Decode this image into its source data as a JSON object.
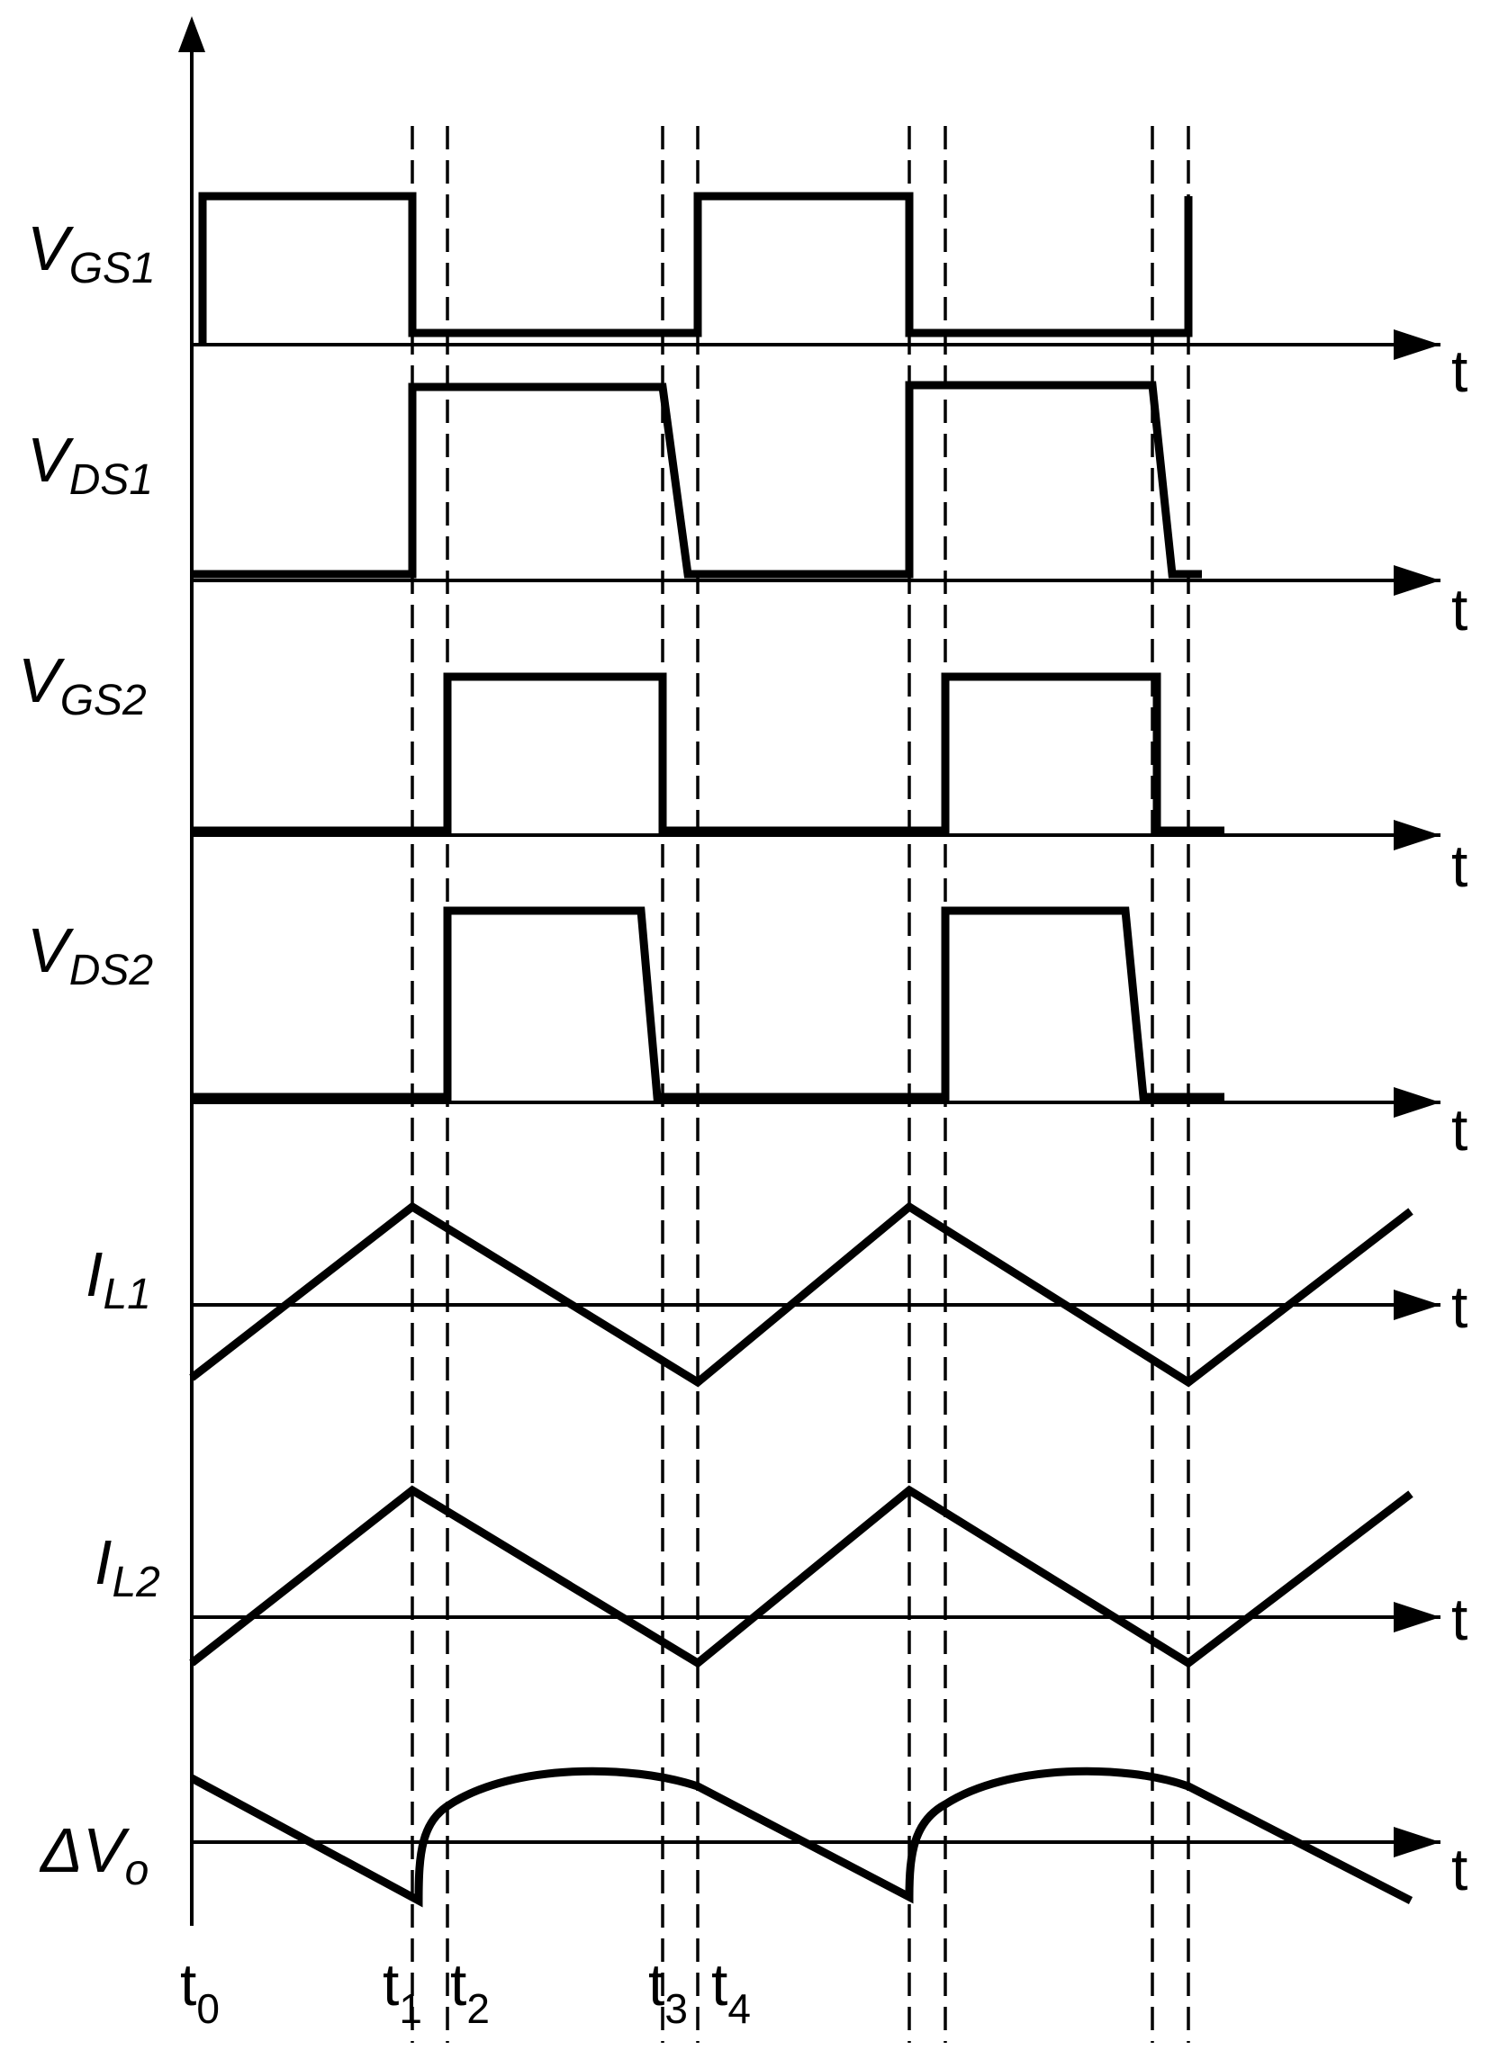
{
  "waveforms": [
    {
      "id": "vgs1",
      "label": "V",
      "sub": "GS1"
    },
    {
      "id": "vds1",
      "label": "V",
      "sub": "DS1"
    },
    {
      "id": "vgs2",
      "label": "V",
      "sub": "GS2"
    },
    {
      "id": "vds2",
      "label": "V",
      "sub": "DS2"
    },
    {
      "id": "il1",
      "label": "I",
      "sub": "L1"
    },
    {
      "id": "il2",
      "label": "I",
      "sub": "L2"
    },
    {
      "id": "dvo",
      "label": "ΔV",
      "sub": "o"
    }
  ],
  "axis_label": "t",
  "time_marks": [
    {
      "id": "t0",
      "base": "t",
      "sub": "0"
    },
    {
      "id": "t1",
      "base": "t",
      "sub": "1"
    },
    {
      "id": "t2",
      "base": "t",
      "sub": "2"
    },
    {
      "id": "t3",
      "base": "t",
      "sub": "3"
    },
    {
      "id": "t4",
      "base": "t",
      "sub": "4"
    }
  ]
}
